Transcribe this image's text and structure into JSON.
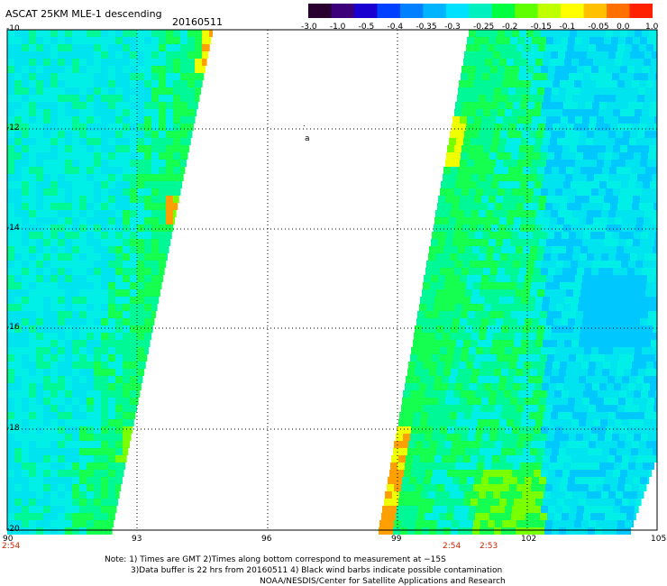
{
  "header": {
    "title": "ASCAT 25KM MLE-1 descending",
    "date": "20160511"
  },
  "colorbar": {
    "colors": [
      "#2a0030",
      "#3b007a",
      "#1a00d0",
      "#0040ff",
      "#0080ff",
      "#00b4ff",
      "#00e0ff",
      "#00f0c0",
      "#00ff40",
      "#60ff00",
      "#c0ff00",
      "#ffff00",
      "#ffc000",
      "#ff7000",
      "#ff2000"
    ],
    "ticks": [
      "-3.0",
      "-1.0",
      "-0.5",
      "-0.4",
      "-0.35",
      "-0.3",
      "-0.25",
      "-0.2",
      "-0.15",
      "-0.1",
      "-0.05",
      "0.0",
      "1.0"
    ]
  },
  "map": {
    "lat_labels": [
      "-10",
      "-12",
      "-14",
      "-16",
      "-18",
      "-20"
    ],
    "lon_labels": [
      "90",
      "93",
      "96",
      "99",
      "102",
      "105"
    ],
    "time_labels": [
      "2:54",
      "2:54",
      "2:53"
    ],
    "swath_colors": {
      "cyan": "#00f0e8",
      "cyan_mid": "#00e4f0",
      "blue_light": "#00c8ff",
      "green_light": "#00f896",
      "green": "#14ff50",
      "green_yellow": "#78ff00",
      "yellow": "#f0ff00",
      "orange": "#ffa000"
    }
  },
  "notes": {
    "line1": "Note: 1) Times are GMT 2)Times along bottom correspond to measurement at −15S",
    "line2": "3)Data buffer is 22 hrs from 20160511 4) Black wind barbs indicate possible contamination",
    "line3": "NOAA/NESDIS/Center for Satellite Applications and Research"
  }
}
